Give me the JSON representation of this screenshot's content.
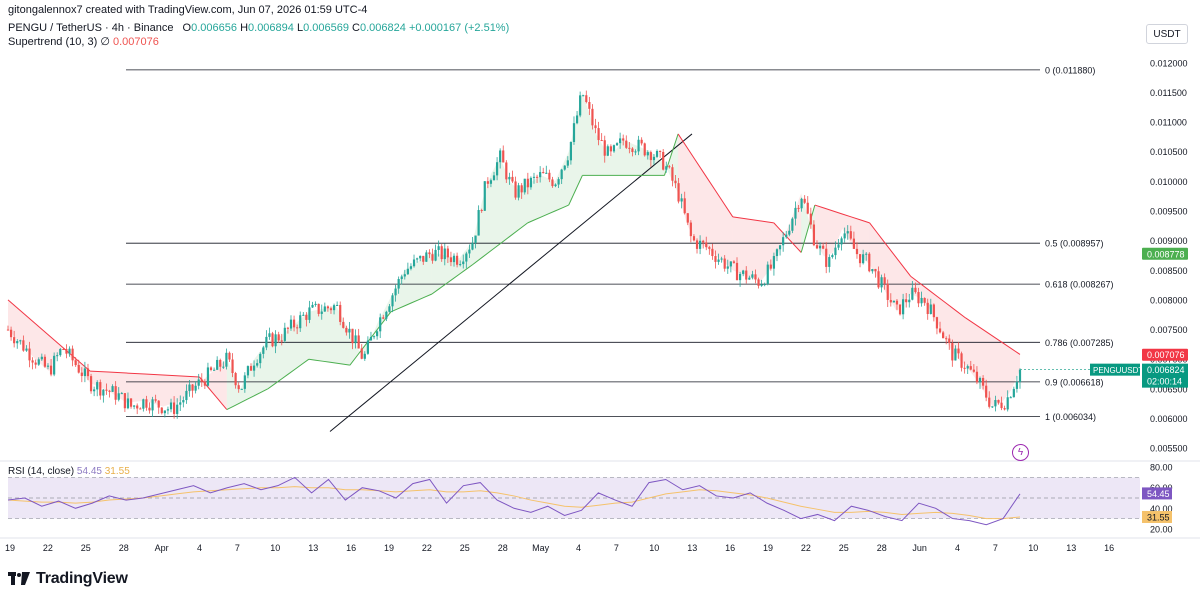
{
  "header": {
    "creator": "gitongalennox7 created with TradingView.com, Jun 07, 2026 01:59 UTC-4",
    "symbol": "PENGU / TetherUS · 4h · Binance",
    "open_label": "O",
    "open": "0.006656",
    "high_label": "H",
    "high": "0.006894",
    "low_label": "L",
    "low": "0.006569",
    "close_label": "C",
    "close": "0.006824",
    "change": "+0.000167 (+2.51%)",
    "supertrend_label": "Supertrend (10, 3)",
    "supertrend_value": "0.007076"
  },
  "currency": "USDT",
  "rsi_header": {
    "label": "RSI (14, close)",
    "rsi": "54.45",
    "ma": "31.55"
  },
  "badges": {
    "green_value": "0.008778",
    "red_value": "0.007076",
    "symbol": "PENGUUSDT",
    "price": "0.006824",
    "countdown": "02:00:14",
    "rsi": "54.45",
    "rsi_ma": "31.55"
  },
  "brand": "TradingView",
  "colors": {
    "up": "#26a69a",
    "down": "#ef5350",
    "supertrend_up": "#4caf50",
    "supertrend_down": "#f23645",
    "rsi": "#7e57c2",
    "rsi_ma": "#f5c26b",
    "rsi_band": "#ede7f6"
  },
  "chart_data": {
    "type": "candlestick",
    "y_axis_ticks": [
      "0.012000",
      "0.011500",
      "0.011000",
      "0.010500",
      "0.010000",
      "0.009500",
      "0.009000",
      "0.008500",
      "0.008000",
      "0.007500",
      "0.007000",
      "0.006500",
      "0.006000",
      "0.005500"
    ],
    "ylim": [
      0.0053,
      0.0123
    ],
    "x_axis_ticks": [
      "19",
      "22",
      "25",
      "28",
      "Apr",
      "4",
      "7",
      "10",
      "13",
      "16",
      "19",
      "22",
      "25",
      "28",
      "May",
      "4",
      "7",
      "10",
      "13",
      "16",
      "19",
      "22",
      "25",
      "28",
      "Jun",
      "4",
      "7",
      "10",
      "13",
      "16"
    ],
    "fibonacci": [
      {
        "label": "0 (0.011880)",
        "value": 0.01188
      },
      {
        "label": "0.5 (0.008957)",
        "value": 0.008957
      },
      {
        "label": "0.618 (0.008267)",
        "value": 0.008267
      },
      {
        "label": "0.786 (0.007285)",
        "value": 0.007285
      },
      {
        "label": "0.9 (0.006618)",
        "value": 0.006618
      },
      {
        "label": "1 (0.006034)",
        "value": 0.006034
      }
    ],
    "trendline": {
      "from": {
        "x": "13",
        "y": 0.00578
      },
      "to": {
        "x": "10",
        "y": 0.0108
      }
    },
    "price_path": [
      {
        "x": 0,
        "y": 0.0075
      },
      {
        "x": 2,
        "y": 0.007
      },
      {
        "x": 3,
        "y": 0.0068
      },
      {
        "x": 4,
        "y": 0.0072
      },
      {
        "x": 6,
        "y": 0.0066
      },
      {
        "x": 8,
        "y": 0.0064
      },
      {
        "x": 9,
        "y": 0.0062
      },
      {
        "x": 10,
        "y": 0.0063
      },
      {
        "x": 12,
        "y": 0.00615
      },
      {
        "x": 14,
        "y": 0.0066
      },
      {
        "x": 15,
        "y": 0.0068
      },
      {
        "x": 16,
        "y": 0.007
      },
      {
        "x": 17,
        "y": 0.0065
      },
      {
        "x": 18,
        "y": 0.007
      },
      {
        "x": 19,
        "y": 0.0073
      },
      {
        "x": 20,
        "y": 0.0074
      },
      {
        "x": 22,
        "y": 0.0078
      },
      {
        "x": 24,
        "y": 0.0079
      },
      {
        "x": 26,
        "y": 0.007
      },
      {
        "x": 27,
        "y": 0.0076
      },
      {
        "x": 29,
        "y": 0.0085
      },
      {
        "x": 31,
        "y": 0.0088
      },
      {
        "x": 33,
        "y": 0.0087
      },
      {
        "x": 34,
        "y": 0.009
      },
      {
        "x": 35,
        "y": 0.01
      },
      {
        "x": 36,
        "y": 0.0104
      },
      {
        "x": 37,
        "y": 0.0098
      },
      {
        "x": 39,
        "y": 0.0101
      },
      {
        "x": 40,
        "y": 0.01
      },
      {
        "x": 41,
        "y": 0.0105
      },
      {
        "x": 42,
        "y": 0.0115
      },
      {
        "x": 43,
        "y": 0.0108
      },
      {
        "x": 44,
        "y": 0.0104
      },
      {
        "x": 45,
        "y": 0.0107
      },
      {
        "x": 46,
        "y": 0.0106
      },
      {
        "x": 47,
        "y": 0.0105
      },
      {
        "x": 48,
        "y": 0.0103
      },
      {
        "x": 49,
        "y": 0.0098
      },
      {
        "x": 50,
        "y": 0.009
      },
      {
        "x": 51,
        "y": 0.0089
      },
      {
        "x": 52,
        "y": 0.0087
      },
      {
        "x": 53,
        "y": 0.0085
      },
      {
        "x": 54,
        "y": 0.0084
      },
      {
        "x": 55,
        "y": 0.0083
      },
      {
        "x": 56,
        "y": 0.0086
      },
      {
        "x": 57,
        "y": 0.0092
      },
      {
        "x": 58,
        "y": 0.0098
      },
      {
        "x": 59,
        "y": 0.009
      },
      {
        "x": 60,
        "y": 0.0086
      },
      {
        "x": 61,
        "y": 0.0092
      },
      {
        "x": 62,
        "y": 0.0088
      },
      {
        "x": 63,
        "y": 0.0086
      },
      {
        "x": 64,
        "y": 0.0082
      },
      {
        "x": 65,
        "y": 0.0078
      },
      {
        "x": 66,
        "y": 0.0081
      },
      {
        "x": 67,
        "y": 0.008
      },
      {
        "x": 68,
        "y": 0.0076
      },
      {
        "x": 69,
        "y": 0.0071
      },
      {
        "x": 70,
        "y": 0.0069
      },
      {
        "x": 71,
        "y": 0.0066
      },
      {
        "x": 72,
        "y": 0.0062
      },
      {
        "x": 73,
        "y": 0.0063
      },
      {
        "x": 74,
        "y": 0.00682
      }
    ],
    "supertrend": [
      {
        "x": 0,
        "y": 0.008,
        "dir": "down"
      },
      {
        "x": 6,
        "y": 0.0068,
        "dir": "down"
      },
      {
        "x": 14,
        "y": 0.0067,
        "dir": "down"
      },
      {
        "x": 16,
        "y": 0.00615,
        "dir": "up"
      },
      {
        "x": 19,
        "y": 0.0065,
        "dir": "up"
      },
      {
        "x": 22,
        "y": 0.007,
        "dir": "up"
      },
      {
        "x": 25,
        "y": 0.0069,
        "dir": "up"
      },
      {
        "x": 28,
        "y": 0.0078,
        "dir": "up"
      },
      {
        "x": 31,
        "y": 0.0081,
        "dir": "up"
      },
      {
        "x": 34,
        "y": 0.0086,
        "dir": "up"
      },
      {
        "x": 38,
        "y": 0.0093,
        "dir": "up"
      },
      {
        "x": 41,
        "y": 0.0096,
        "dir": "up"
      },
      {
        "x": 42,
        "y": 0.0101,
        "dir": "up"
      },
      {
        "x": 48,
        "y": 0.0101,
        "dir": "up"
      },
      {
        "x": 49,
        "y": 0.0108,
        "dir": "down"
      },
      {
        "x": 53,
        "y": 0.0094,
        "dir": "down"
      },
      {
        "x": 56,
        "y": 0.0093,
        "dir": "down"
      },
      {
        "x": 58,
        "y": 0.0088,
        "dir": "up"
      },
      {
        "x": 59,
        "y": 0.0096,
        "dir": "down"
      },
      {
        "x": 63,
        "y": 0.0093,
        "dir": "down"
      },
      {
        "x": 66,
        "y": 0.0084,
        "dir": "down"
      },
      {
        "x": 70,
        "y": 0.0077,
        "dir": "down"
      },
      {
        "x": 74,
        "y": 0.00708,
        "dir": "down"
      }
    ],
    "rsi": {
      "ylim": [
        15,
        85
      ],
      "axis_ticks": [
        "80.00",
        "60.00",
        "40.00",
        "20.00"
      ],
      "bands": [
        70,
        50,
        30
      ],
      "rsi_values": [
        48,
        50,
        42,
        47,
        40,
        45,
        52,
        48,
        50,
        54,
        58,
        62,
        55,
        60,
        64,
        58,
        62,
        70,
        55,
        68,
        48,
        60,
        57,
        50,
        64,
        68,
        45,
        62,
        65,
        48,
        40,
        36,
        42,
        33,
        38,
        55,
        48,
        42,
        65,
        68,
        58,
        62,
        52,
        50,
        55,
        45,
        38,
        30,
        34,
        28,
        42,
        38,
        32,
        28,
        45,
        40,
        30,
        28,
        24,
        30,
        54
      ],
      "ma_values": [
        48,
        47,
        46,
        46,
        45,
        46,
        48,
        49,
        50,
        52,
        54,
        56,
        57,
        58,
        59,
        60,
        60,
        61,
        60,
        60,
        58,
        58,
        57,
        56,
        57,
        58,
        56,
        56,
        57,
        55,
        52,
        48,
        45,
        42,
        41,
        43,
        45,
        46,
        50,
        54,
        56,
        58,
        57,
        55,
        53,
        50,
        46,
        42,
        39,
        36,
        36,
        37,
        36,
        34,
        35,
        36,
        35,
        33,
        30,
        30,
        31.5
      ]
    },
    "legend": "top-left",
    "grid": false
  }
}
